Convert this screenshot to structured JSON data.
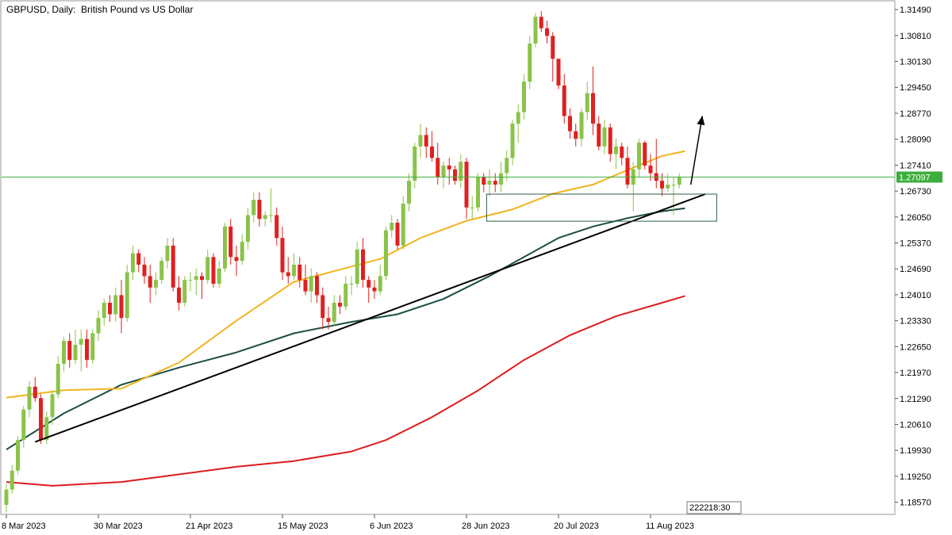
{
  "header": {
    "symbol": "GBPUSD",
    "timeframe": "Daily:",
    "description": "British Pound vs US Dollar"
  },
  "status": {
    "time_badge": "18:30"
  },
  "colors": {
    "bull": "#8bc34a",
    "bear": "#e02020",
    "ma_fast": "#f0b41e",
    "ma_mid": "#1b4d45",
    "ma_slow": "#dd1c1c",
    "trendline": "#000000",
    "current_price_line": "#3cae3c",
    "zone_border": "#2e5e4a"
  },
  "chart_data": {
    "type": "candlestick",
    "title": "GBPUSD, Daily:  British Pound vs US Dollar",
    "symbol": "GBPUSD",
    "timeframe": "Daily",
    "xlabel": "",
    "ylabel": "",
    "ylim": [
      1.1825,
      1.317
    ],
    "y_ticks": [
      "1.31490",
      "1.30810",
      "1.30130",
      "1.29450",
      "1.28770",
      "1.28090",
      "1.27410",
      "1.26730",
      "1.26050",
      "1.25370",
      "1.24690",
      "1.24010",
      "1.23330",
      "1.22650",
      "1.21970",
      "1.21290",
      "1.20610",
      "1.19930",
      "1.19250",
      "1.18570"
    ],
    "x_ticks": [
      {
        "label": "8 Mar 2023",
        "index": 0
      },
      {
        "label": "30 Mar 2023",
        "index": 16
      },
      {
        "label": "21 Apr 2023",
        "index": 32
      },
      {
        "label": "15 May 2023",
        "index": 48
      },
      {
        "label": "6 Jun 2023",
        "index": 64
      },
      {
        "label": "28 Jun 2023",
        "index": 80
      },
      {
        "label": "20 Jul 2023",
        "index": 96
      },
      {
        "label": "11 Aug 2023",
        "index": 112
      }
    ],
    "current_price": 1.27097,
    "current_price_label": "1.27097",
    "grid": false,
    "candles": [
      [
        1.185,
        1.1905,
        1.183,
        1.189
      ],
      [
        1.189,
        1.1955,
        1.188,
        1.194
      ],
      [
        1.194,
        1.203,
        1.193,
        1.202
      ],
      [
        1.202,
        1.211,
        1.2,
        1.21
      ],
      [
        1.21,
        1.2175,
        1.208,
        1.216
      ],
      [
        1.216,
        1.2185,
        1.212,
        1.213
      ],
      [
        1.213,
        1.214,
        1.201,
        1.202
      ],
      [
        1.202,
        1.2095,
        1.201,
        1.208
      ],
      [
        1.208,
        1.215,
        1.206,
        1.214
      ],
      [
        1.214,
        1.224,
        1.213,
        1.222
      ],
      [
        1.222,
        1.229,
        1.22,
        1.228
      ],
      [
        1.228,
        1.23,
        1.221,
        1.223
      ],
      [
        1.223,
        1.231,
        1.222,
        1.227
      ],
      [
        1.227,
        1.231,
        1.22,
        1.2285
      ],
      [
        1.2285,
        1.231,
        1.221,
        1.223
      ],
      [
        1.223,
        1.231,
        1.222,
        1.23
      ],
      [
        1.23,
        1.236,
        1.228,
        1.234
      ],
      [
        1.234,
        1.239,
        1.232,
        1.238
      ],
      [
        1.238,
        1.24,
        1.233,
        1.235
      ],
      [
        1.235,
        1.242,
        1.233,
        1.24
      ],
      [
        1.24,
        1.244,
        1.23,
        1.234
      ],
      [
        1.234,
        1.248,
        1.233,
        1.246
      ],
      [
        1.246,
        1.253,
        1.244,
        1.251
      ],
      [
        1.251,
        1.252,
        1.246,
        1.248
      ],
      [
        1.248,
        1.25,
        1.243,
        1.245
      ],
      [
        1.245,
        1.248,
        1.238,
        1.242
      ],
      [
        1.242,
        1.246,
        1.24,
        1.244
      ],
      [
        1.244,
        1.25,
        1.243,
        1.249
      ],
      [
        1.249,
        1.255,
        1.247,
        1.253
      ],
      [
        1.253,
        1.255,
        1.241,
        1.242
      ],
      [
        1.242,
        1.245,
        1.236,
        1.238
      ],
      [
        1.238,
        1.245,
        1.237,
        1.244
      ],
      [
        1.244,
        1.246,
        1.241,
        1.244
      ],
      [
        1.244,
        1.247,
        1.24,
        1.245
      ],
      [
        1.245,
        1.246,
        1.239,
        1.244
      ],
      [
        1.244,
        1.252,
        1.243,
        1.25
      ],
      [
        1.25,
        1.251,
        1.242,
        1.243
      ],
      [
        1.243,
        1.249,
        1.242,
        1.247
      ],
      [
        1.247,
        1.259,
        1.246,
        1.258
      ],
      [
        1.258,
        1.26,
        1.248,
        1.25
      ],
      [
        1.25,
        1.253,
        1.245,
        1.249
      ],
      [
        1.249,
        1.256,
        1.248,
        1.254
      ],
      [
        1.254,
        1.263,
        1.252,
        1.261
      ],
      [
        1.261,
        1.267,
        1.259,
        1.265
      ],
      [
        1.265,
        1.267,
        1.258,
        1.26
      ],
      [
        1.26,
        1.262,
        1.258,
        1.261
      ],
      [
        1.261,
        1.268,
        1.259,
        1.261
      ],
      [
        1.261,
        1.263,
        1.253,
        1.255
      ],
      [
        1.255,
        1.258,
        1.244,
        1.246
      ],
      [
        1.246,
        1.25,
        1.243,
        1.245
      ],
      [
        1.245,
        1.251,
        1.244,
        1.248
      ],
      [
        1.248,
        1.25,
        1.242,
        1.244
      ],
      [
        1.244,
        1.248,
        1.24,
        1.241
      ],
      [
        1.241,
        1.247,
        1.238,
        1.245
      ],
      [
        1.245,
        1.246,
        1.238,
        1.24
      ],
      [
        1.24,
        1.242,
        1.231,
        1.234
      ],
      [
        1.234,
        1.237,
        1.231,
        1.233
      ],
      [
        1.233,
        1.24,
        1.232,
        1.238
      ],
      [
        1.238,
        1.24,
        1.235,
        1.237
      ],
      [
        1.237,
        1.245,
        1.236,
        1.243
      ],
      [
        1.243,
        1.245,
        1.24,
        1.243
      ],
      [
        1.243,
        1.254,
        1.242,
        1.252
      ],
      [
        1.252,
        1.255,
        1.242,
        1.244
      ],
      [
        1.244,
        1.245,
        1.238,
        1.242
      ],
      [
        1.242,
        1.244,
        1.239,
        1.241
      ],
      [
        1.241,
        1.248,
        1.24,
        1.245
      ],
      [
        1.245,
        1.258,
        1.244,
        1.257
      ],
      [
        1.257,
        1.261,
        1.255,
        1.259
      ],
      [
        1.259,
        1.26,
        1.252,
        1.253
      ],
      [
        1.253,
        1.266,
        1.252,
        1.264
      ],
      [
        1.264,
        1.272,
        1.262,
        1.27
      ],
      [
        1.27,
        1.28,
        1.268,
        1.279
      ],
      [
        1.279,
        1.285,
        1.276,
        1.282
      ],
      [
        1.282,
        1.284,
        1.276,
        1.279
      ],
      [
        1.279,
        1.283,
        1.275,
        1.276
      ],
      [
        1.276,
        1.28,
        1.269,
        1.271
      ],
      [
        1.271,
        1.275,
        1.268,
        1.274
      ],
      [
        1.274,
        1.276,
        1.269,
        1.273
      ],
      [
        1.273,
        1.274,
        1.269,
        1.27
      ],
      [
        1.27,
        1.277,
        1.268,
        1.275
      ],
      [
        1.275,
        1.276,
        1.26,
        1.263
      ],
      [
        1.263,
        1.266,
        1.26,
        1.263
      ],
      [
        1.263,
        1.272,
        1.262,
        1.271
      ],
      [
        1.271,
        1.272,
        1.267,
        1.269
      ],
      [
        1.269,
        1.273,
        1.266,
        1.27
      ],
      [
        1.27,
        1.272,
        1.267,
        1.269
      ],
      [
        1.269,
        1.275,
        1.267,
        1.272
      ],
      [
        1.272,
        1.278,
        1.27,
        1.276
      ],
      [
        1.276,
        1.286,
        1.274,
        1.285
      ],
      [
        1.285,
        1.29,
        1.28,
        1.288
      ],
      [
        1.288,
        1.298,
        1.286,
        1.296
      ],
      [
        1.296,
        1.308,
        1.294,
        1.306
      ],
      [
        1.306,
        1.314,
        1.305,
        1.313
      ],
      [
        1.313,
        1.3145,
        1.309,
        1.31
      ],
      [
        1.31,
        1.312,
        1.306,
        1.308
      ],
      [
        1.308,
        1.309,
        1.296,
        1.302
      ],
      [
        1.302,
        1.302,
        1.294,
        1.295
      ],
      [
        1.295,
        1.298,
        1.285,
        1.287
      ],
      [
        1.287,
        1.289,
        1.281,
        1.283
      ],
      [
        1.283,
        1.285,
        1.279,
        1.281
      ],
      [
        1.281,
        1.289,
        1.279,
        1.288
      ],
      [
        1.288,
        1.296,
        1.286,
        1.293
      ],
      [
        1.293,
        1.3,
        1.282,
        1.285
      ],
      [
        1.285,
        1.287,
        1.278,
        1.279
      ],
      [
        1.279,
        1.286,
        1.277,
        1.284
      ],
      [
        1.284,
        1.285,
        1.275,
        1.277
      ],
      [
        1.277,
        1.281,
        1.273,
        1.279
      ],
      [
        1.279,
        1.28,
        1.274,
        1.276
      ],
      [
        1.276,
        1.279,
        1.268,
        1.269
      ],
      [
        1.269,
        1.275,
        1.262,
        1.273
      ],
      [
        1.273,
        1.281,
        1.271,
        1.28
      ],
      [
        1.28,
        1.2805,
        1.273,
        1.274
      ],
      [
        1.274,
        1.277,
        1.27,
        1.272
      ],
      [
        1.272,
        1.281,
        1.268,
        1.27
      ],
      [
        1.27,
        1.272,
        1.266,
        1.268
      ],
      [
        1.268,
        1.272,
        1.267,
        1.269
      ],
      [
        1.269,
        1.271,
        1.261,
        1.269
      ],
      [
        1.269,
        1.272,
        1.268,
        1.271
      ]
    ],
    "series": [
      {
        "name": "",
        "color_key": "ma_fast",
        "points": [
          [
            0,
            1.2131
          ],
          [
            10,
            1.2151
          ],
          [
            20,
            1.2155
          ],
          [
            30,
            1.2223
          ],
          [
            40,
            1.2333
          ],
          [
            50,
            1.2435
          ],
          [
            60,
            1.2475
          ],
          [
            65,
            1.2495
          ],
          [
            72,
            1.255
          ],
          [
            80,
            1.2595
          ],
          [
            88,
            1.2625
          ],
          [
            95,
            1.2666
          ],
          [
            102,
            1.269
          ],
          [
            108,
            1.2728
          ],
          [
            114,
            1.2765
          ],
          [
            118,
            1.2778
          ]
        ]
      },
      {
        "name": "",
        "color_key": "ma_mid",
        "points": [
          [
            0,
            1.1995
          ],
          [
            10,
            1.209
          ],
          [
            20,
            1.2165
          ],
          [
            30,
            1.221
          ],
          [
            40,
            1.225
          ],
          [
            50,
            1.23
          ],
          [
            60,
            1.233
          ],
          [
            68,
            1.235
          ],
          [
            76,
            1.239
          ],
          [
            84,
            1.245
          ],
          [
            90,
            1.25
          ],
          [
            96,
            1.255
          ],
          [
            102,
            1.258
          ],
          [
            108,
            1.2602
          ],
          [
            114,
            1.262
          ],
          [
            118,
            1.2628
          ]
        ]
      },
      {
        "name": "",
        "color_key": "ma_slow",
        "points": [
          [
            0,
            1.191
          ],
          [
            8,
            1.19
          ],
          [
            20,
            1.191
          ],
          [
            30,
            1.193
          ],
          [
            40,
            1.195
          ],
          [
            50,
            1.1965
          ],
          [
            60,
            1.199
          ],
          [
            66,
            1.202
          ],
          [
            74,
            1.208
          ],
          [
            82,
            1.215
          ],
          [
            90,
            1.223
          ],
          [
            98,
            1.2295
          ],
          [
            106,
            1.2345
          ],
          [
            114,
            1.238
          ],
          [
            118,
            1.2398
          ]
        ]
      }
    ],
    "annotations": {
      "trendline": [
        [
          5,
          1.2015
        ],
        [
          121.5,
          1.2665
        ]
      ],
      "support_zone": {
        "x_start": 83.5,
        "x_end": 123.5,
        "y_low": 1.2594,
        "y_high": 1.2665
      },
      "arrow": {
        "from": [
          119,
          1.269
        ],
        "to": [
          121,
          1.287
        ]
      }
    }
  }
}
